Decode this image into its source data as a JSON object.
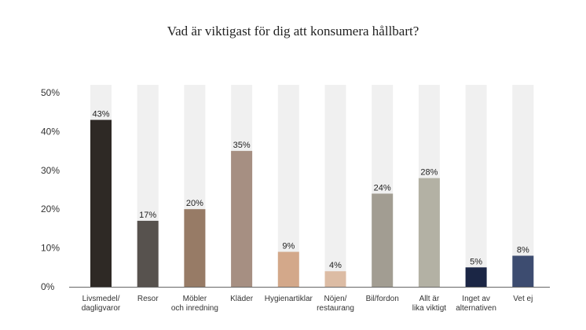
{
  "chart_data": {
    "type": "bar",
    "title": "Vad är viktigast för dig att konsumera hållbart?",
    "xlabel": "",
    "ylabel": "",
    "ylim": [
      0,
      50
    ],
    "yticks": [
      "0%",
      "10%",
      "20%",
      "30%",
      "40%",
      "50%"
    ],
    "grid": false,
    "legend": "none",
    "background_bars": true,
    "categories": [
      [
        "Livsmedel/",
        "dagligvaror"
      ],
      [
        "Resor"
      ],
      [
        "Möbler",
        "och inredning"
      ],
      [
        "Kläder"
      ],
      [
        "Hygienartiklar"
      ],
      [
        "Nöjen/",
        "restaurang"
      ],
      [
        "Bil/fordon"
      ],
      [
        "Allt är",
        "lika viktigt"
      ],
      [
        "Inget av",
        "alternativen"
      ],
      [
        "Vet ej"
      ]
    ],
    "values": [
      43,
      17,
      20,
      35,
      9,
      4,
      24,
      28,
      5,
      8
    ],
    "value_labels": [
      "43%",
      "17%",
      "20%",
      "35%",
      "9%",
      "4%",
      "24%",
      "28%",
      "5%",
      "8%"
    ],
    "colors": [
      "#2e2925",
      "#57524e",
      "#977b66",
      "#a68f82",
      "#d3a88a",
      "#dcbca4",
      "#a29d92",
      "#b3b1a4",
      "#1b2645",
      "#3d4c70"
    ],
    "track_color": "#f0f0f0",
    "axis_color": "#666666"
  }
}
